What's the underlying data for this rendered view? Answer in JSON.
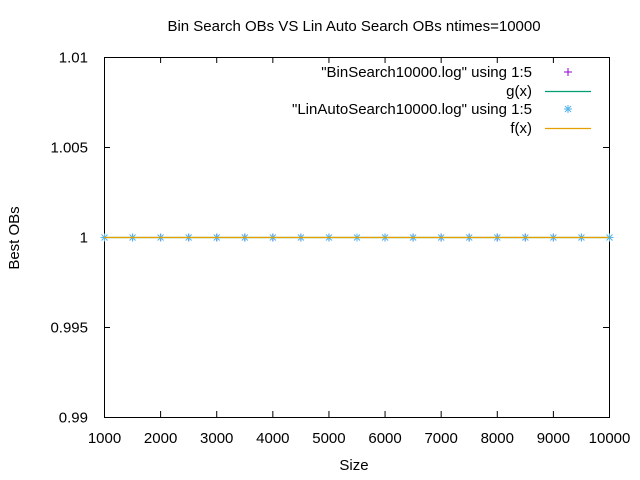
{
  "colors": {
    "background": "#ffffff",
    "axis": "#000000",
    "bin_search": "#9400d3",
    "g_line": "#009e73",
    "lin_auto_search": "#56b4e9",
    "f_line": "#e69f00"
  },
  "chart_data": {
    "type": "scatter",
    "title": "Bin Search OBs VS Lin Auto Search OBs ntimes=10000",
    "xlabel": "Size",
    "ylabel": "Best OBs",
    "xlim": [
      1000,
      10000
    ],
    "ylim": [
      0.99,
      1.01
    ],
    "xticks": [
      "1000",
      "2000",
      "3000",
      "4000",
      "5000",
      "6000",
      "7000",
      "8000",
      "9000",
      "10000"
    ],
    "yticks": [
      "0.99",
      "0.995",
      "1",
      "1.005",
      "1.01"
    ],
    "grid": false,
    "legend_position": "top-right",
    "series": [
      {
        "name": "\"BinSearch10000.log\" using 1:5",
        "kind": "points",
        "marker": "plus",
        "color": "#9400d3",
        "x": [
          1000,
          1500,
          2000,
          2500,
          3000,
          3500,
          4000,
          4500,
          5000,
          5500,
          6000,
          6500,
          7000,
          7500,
          8000,
          8500,
          9000,
          9500,
          10000
        ],
        "y": [
          1,
          1,
          1,
          1,
          1,
          1,
          1,
          1,
          1,
          1,
          1,
          1,
          1,
          1,
          1,
          1,
          1,
          1,
          1
        ]
      },
      {
        "name": "g(x)",
        "kind": "line",
        "color": "#009e73",
        "x": [
          1000,
          10000
        ],
        "y": [
          1,
          1
        ]
      },
      {
        "name": "\"LinAutoSearch10000.log\" using 1:5",
        "kind": "points",
        "marker": "asterisk",
        "color": "#56b4e9",
        "x": [
          1000,
          1500,
          2000,
          2500,
          3000,
          3500,
          4000,
          4500,
          5000,
          5500,
          6000,
          6500,
          7000,
          7500,
          8000,
          8500,
          9000,
          9500,
          10000
        ],
        "y": [
          1,
          1,
          1,
          1,
          1,
          1,
          1,
          1,
          1,
          1,
          1,
          1,
          1,
          1,
          1,
          1,
          1,
          1,
          1
        ]
      },
      {
        "name": "f(x)",
        "kind": "line",
        "color": "#e69f00",
        "x": [
          1000,
          10000
        ],
        "y": [
          1,
          1
        ]
      }
    ]
  }
}
